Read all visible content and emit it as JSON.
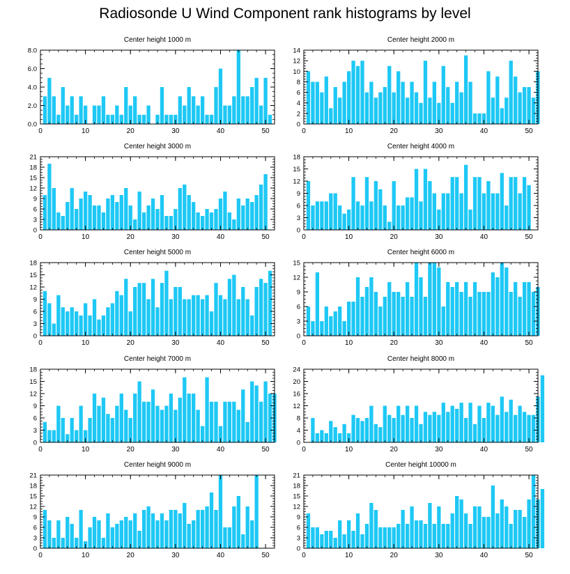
{
  "figure": {
    "title": "Radiosonde U Wind Component rank histograms by level",
    "bar_color": "#1ec8f5",
    "axis_color": "#000000"
  },
  "chart_data": [
    {
      "type": "bar",
      "title": "Center height 1000 m",
      "x_start": 1,
      "xlim": [
        0,
        52
      ],
      "xticks": [
        0,
        10,
        20,
        30,
        40,
        50
      ],
      "ylim": [
        0,
        8
      ],
      "yticks": [
        "0.0",
        "2.0",
        "4.0",
        "6.0",
        "8.0"
      ],
      "ytick_values": [
        0,
        2,
        4,
        6,
        8
      ],
      "values": [
        3,
        5,
        3,
        1,
        4,
        2,
        3,
        1,
        3,
        2,
        0,
        2,
        2,
        3,
        1,
        1,
        2,
        1,
        4,
        2,
        3,
        1,
        1,
        2,
        0,
        1,
        4,
        1,
        1,
        1,
        3,
        2,
        4,
        3,
        2,
        3,
        1,
        1,
        4,
        6,
        2,
        2,
        3,
        8,
        3,
        3,
        4,
        5,
        2,
        5,
        1
      ]
    },
    {
      "type": "bar",
      "title": "Center height 2000 m",
      "x_start": 1,
      "xlim": [
        0,
        52
      ],
      "xticks": [
        0,
        10,
        20,
        30,
        40,
        50
      ],
      "ylim": [
        0,
        14
      ],
      "yticks": [
        "0",
        "2",
        "4",
        "6",
        "8",
        "10",
        "12",
        "14"
      ],
      "ytick_values": [
        0,
        2,
        4,
        6,
        8,
        10,
        12,
        14
      ],
      "values": [
        10,
        8,
        8,
        6,
        9,
        3,
        7,
        5,
        8,
        10,
        12,
        11,
        12,
        6,
        8,
        5,
        6,
        7,
        11,
        6,
        10,
        8,
        5,
        8,
        6,
        4,
        12,
        5,
        8,
        4,
        11,
        7,
        4,
        8,
        6,
        13,
        8,
        2,
        2,
        2,
        10,
        5,
        9,
        3,
        5,
        12,
        9,
        6,
        7,
        7,
        5,
        10
      ]
    },
    {
      "type": "bar",
      "title": "Center height 3000 m",
      "x_start": 1,
      "xlim": [
        0,
        52
      ],
      "xticks": [
        0,
        10,
        20,
        30,
        40,
        50
      ],
      "ylim": [
        0,
        21
      ],
      "yticks": [
        "0",
        "3",
        "6",
        "9",
        "12",
        "15",
        "18",
        "21"
      ],
      "ytick_values": [
        0,
        3,
        6,
        9,
        12,
        15,
        18,
        21
      ],
      "values": [
        10,
        19,
        12,
        5,
        4,
        8,
        12,
        6,
        9,
        11,
        10,
        7,
        7,
        5,
        9,
        10,
        8,
        10,
        12,
        7,
        3,
        11,
        5,
        7,
        9,
        6,
        10,
        4,
        4,
        6,
        12,
        13,
        10,
        8,
        5,
        4,
        6,
        5,
        6,
        9,
        11,
        5,
        3,
        9,
        7,
        9,
        8,
        10,
        13,
        16
      ]
    },
    {
      "type": "bar",
      "title": "Center height 4000 m",
      "x_start": 1,
      "xlim": [
        0,
        52
      ],
      "xticks": [
        0,
        10,
        20,
        30,
        40,
        50
      ],
      "ylim": [
        0,
        18
      ],
      "yticks": [
        "0",
        "3",
        "6",
        "9",
        "12",
        "15",
        "18"
      ],
      "ytick_values": [
        0,
        3,
        6,
        9,
        12,
        15,
        18
      ],
      "values": [
        12,
        6,
        7,
        7,
        7,
        9,
        9,
        6,
        4,
        5,
        13,
        7,
        6,
        13,
        7,
        12,
        10,
        6,
        2,
        12,
        6,
        6,
        8,
        8,
        15,
        7,
        15,
        12,
        9,
        5,
        9,
        9,
        13,
        13,
        9,
        16,
        5,
        13,
        13,
        9,
        12,
        9,
        9,
        14,
        6,
        13,
        13,
        9,
        13,
        11
      ]
    },
    {
      "type": "bar",
      "title": "Center height 5000 m",
      "x_start": 1,
      "xlim": [
        0,
        52
      ],
      "xticks": [
        0,
        10,
        20,
        30,
        40,
        50
      ],
      "ylim": [
        0,
        18
      ],
      "yticks": [
        "0",
        "3",
        "6",
        "9",
        "12",
        "15",
        "18"
      ],
      "ytick_values": [
        0,
        3,
        6,
        9,
        12,
        15,
        18
      ],
      "values": [
        11,
        8,
        3,
        10,
        7,
        6,
        7,
        6,
        5,
        8,
        5,
        9,
        4,
        5,
        7,
        8,
        11,
        10,
        14,
        6,
        12,
        13,
        13,
        9,
        14,
        7,
        13,
        16,
        9,
        12,
        12,
        9,
        9,
        10,
        10,
        9,
        10,
        6,
        13,
        10,
        9,
        14,
        15,
        9,
        12,
        9,
        5,
        12,
        14,
        13,
        16
      ]
    },
    {
      "type": "bar",
      "title": "Center height 6000 m",
      "x_start": 1,
      "xlim": [
        0,
        52
      ],
      "xticks": [
        0,
        10,
        20,
        30,
        40,
        50
      ],
      "ylim": [
        0,
        15
      ],
      "yticks": [
        "0",
        "3",
        "6",
        "9",
        "12",
        "15"
      ],
      "ytick_values": [
        0,
        3,
        6,
        9,
        12,
        15
      ],
      "values": [
        6,
        3,
        13,
        3,
        6,
        4,
        5,
        6,
        3,
        7,
        7,
        12,
        8,
        10,
        12,
        9,
        6,
        8,
        11,
        9,
        9,
        8,
        11,
        8,
        15,
        12,
        8,
        15,
        15,
        14,
        6,
        11,
        10,
        11,
        9,
        11,
        8,
        11,
        9,
        9,
        9,
        13,
        12,
        15,
        14,
        9,
        11,
        8,
        11,
        11,
        9,
        10
      ]
    },
    {
      "type": "bar",
      "title": "Center height 7000 m",
      "x_start": 1,
      "xlim": [
        0,
        52
      ],
      "xticks": [
        0,
        10,
        20,
        30,
        40,
        50
      ],
      "ylim": [
        0,
        18
      ],
      "yticks": [
        "0",
        "3",
        "6",
        "9",
        "12",
        "15",
        "18"
      ],
      "ytick_values": [
        0,
        3,
        6,
        9,
        12,
        15,
        18
      ],
      "values": [
        5,
        3,
        3,
        9,
        6,
        2,
        6,
        3,
        9,
        3,
        6,
        12,
        9,
        11,
        7,
        6,
        9,
        12,
        8,
        6,
        12,
        15,
        10,
        10,
        13,
        9,
        8,
        9,
        12,
        8,
        11,
        16,
        12,
        12,
        8,
        4,
        16,
        10,
        10,
        4,
        10,
        10,
        10,
        8,
        13,
        5,
        15,
        14,
        10,
        15,
        12,
        12
      ]
    },
    {
      "type": "bar",
      "title": "Center height 8000 m",
      "x_start": 1,
      "xlim": [
        0,
        52
      ],
      "xticks": [
        0,
        10,
        20,
        30,
        40,
        50
      ],
      "ylim": [
        0,
        24
      ],
      "yticks": [
        "0",
        "4",
        "8",
        "12",
        "16",
        "20",
        "24"
      ],
      "ytick_values": [
        0,
        4,
        8,
        12,
        16,
        20,
        24
      ],
      "values": [
        0,
        8,
        3,
        4,
        3,
        7,
        5,
        3,
        6,
        3,
        9,
        8,
        7,
        8,
        12,
        6,
        5,
        12,
        9,
        8,
        12,
        9,
        12,
        8,
        12,
        6,
        10,
        9,
        10,
        9,
        13,
        10,
        12,
        11,
        13,
        8,
        13,
        6,
        12,
        8,
        13,
        12,
        9,
        15,
        10,
        14,
        9,
        12,
        10,
        9,
        9,
        15,
        22
      ]
    },
    {
      "type": "bar",
      "title": "Center height 9000 m",
      "x_start": 1,
      "xlim": [
        0,
        52
      ],
      "xticks": [
        0,
        10,
        20,
        30,
        40,
        50
      ],
      "ylim": [
        0,
        21
      ],
      "yticks": [
        "0",
        "3",
        "6",
        "9",
        "12",
        "15",
        "18",
        "21"
      ],
      "ytick_values": [
        0,
        3,
        6,
        9,
        12,
        15,
        18,
        21
      ],
      "values": [
        11,
        8,
        3,
        8,
        3,
        9,
        7,
        3,
        11,
        2,
        6,
        9,
        8,
        3,
        10,
        6,
        7,
        8,
        9,
        8,
        10,
        5,
        11,
        12,
        10,
        8,
        10,
        8,
        11,
        11,
        10,
        13,
        7,
        8,
        11,
        11,
        12,
        16,
        11,
        21,
        6,
        6,
        12,
        15,
        4,
        12,
        8,
        21
      ]
    },
    {
      "type": "bar",
      "title": "Center height 10000 m",
      "x_start": 1,
      "xlim": [
        0,
        52
      ],
      "xticks": [
        0,
        10,
        20,
        30,
        40,
        50
      ],
      "ylim": [
        0,
        21
      ],
      "yticks": [
        "0",
        "3",
        "6",
        "9",
        "12",
        "15",
        "18",
        "21"
      ],
      "ytick_values": [
        0,
        3,
        6,
        9,
        12,
        15,
        18,
        21
      ],
      "values": [
        10,
        6,
        6,
        4,
        5,
        5,
        3,
        8,
        4,
        8,
        5,
        10,
        4,
        7,
        13,
        11,
        6,
        6,
        6,
        6,
        7,
        11,
        7,
        12,
        8,
        8,
        7,
        13,
        7,
        12,
        7,
        7,
        10,
        15,
        14,
        10,
        7,
        12,
        12,
        9,
        9,
        18,
        10,
        14,
        12,
        7,
        11,
        11,
        9,
        14,
        21,
        14,
        17
      ]
    }
  ]
}
